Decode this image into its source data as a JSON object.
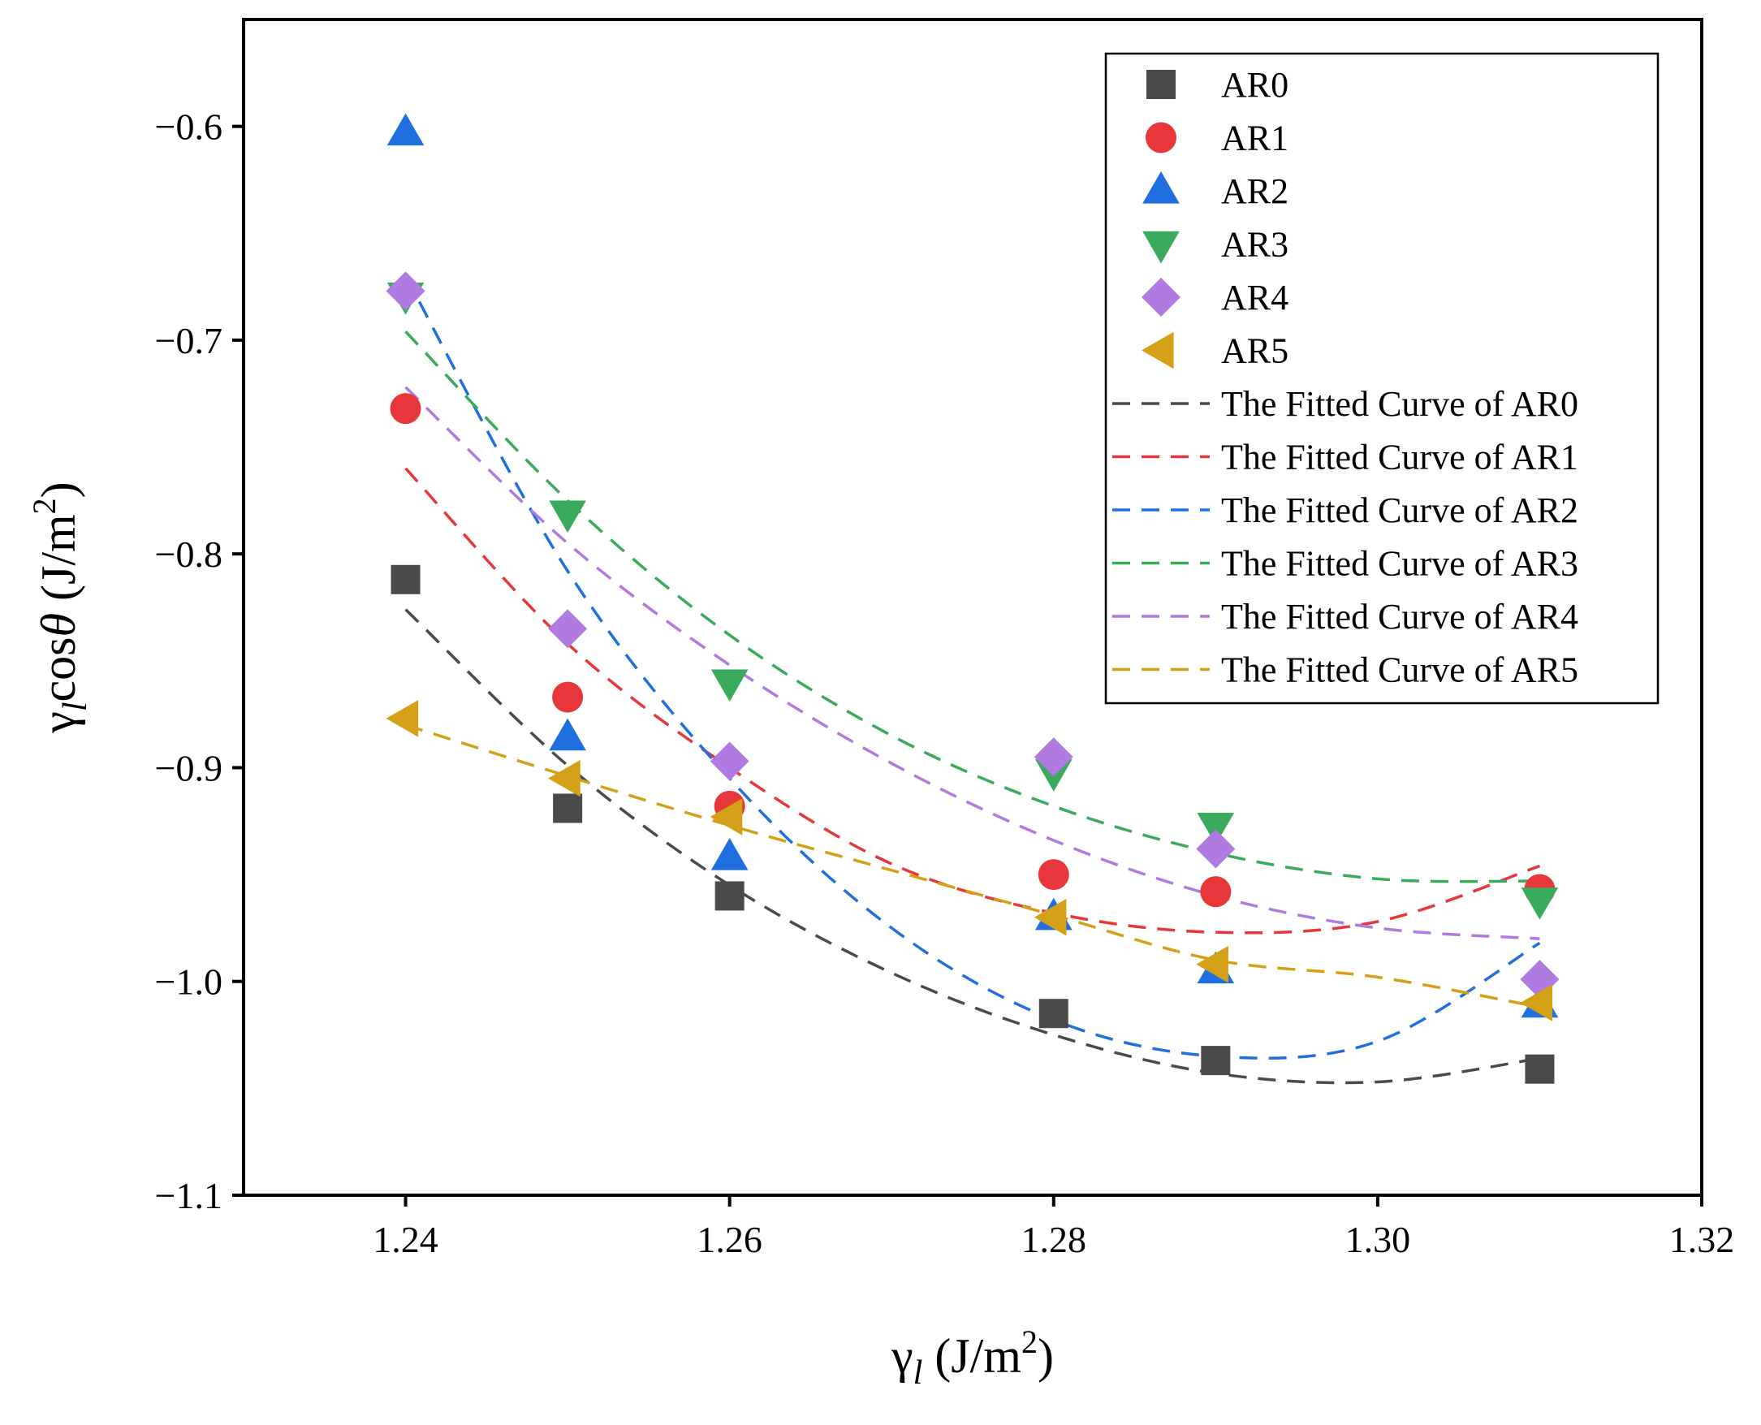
{
  "chart_data": {
    "type": "scatter",
    "title": "",
    "xlabel": "γl (J/m2)",
    "ylabel": "γlcosθ (J/m2)",
    "xlim": [
      1.23,
      1.32
    ],
    "ylim": [
      -1.1,
      -0.55
    ],
    "xticks": [
      1.24,
      1.26,
      1.28,
      1.3,
      1.32
    ],
    "xtick_labels": [
      "1.24",
      "1.26",
      "1.28",
      "1.30",
      "1.32"
    ],
    "yticks": [
      -0.6,
      -0.7,
      -0.8,
      -0.9,
      -1.0,
      -1.1
    ],
    "ytick_labels": [
      "−0.6",
      "−0.7",
      "−0.8",
      "−0.9",
      "−1.0",
      "−1.1"
    ],
    "grid": false,
    "legend_position": "top-right",
    "x": [
      1.24,
      1.25,
      1.26,
      1.28,
      1.29,
      1.31
    ],
    "series": [
      {
        "name": "AR0",
        "marker": "square",
        "color": "#4a4a4a",
        "values": [
          -0.812,
          -0.919,
          -0.96,
          -1.015,
          -1.037,
          -1.041
        ],
        "fit_label": "The Fitted Curve of AR0",
        "fit_x": [
          1.24,
          1.25,
          1.26,
          1.27,
          1.28,
          1.29,
          1.3,
          1.31
        ],
        "fit_y": [
          -0.826,
          -0.899,
          -0.955,
          -0.996,
          -1.025,
          -1.043,
          -1.047,
          -1.036
        ]
      },
      {
        "name": "AR1",
        "marker": "circle",
        "color": "#e8373a",
        "values": [
          -0.732,
          -0.867,
          -0.918,
          -0.95,
          -0.958,
          -0.957
        ],
        "fit_label": "The Fitted Curve of AR1",
        "fit_x": [
          1.24,
          1.25,
          1.26,
          1.27,
          1.28,
          1.29,
          1.3,
          1.31
        ],
        "fit_y": [
          -0.76,
          -0.842,
          -0.9,
          -0.945,
          -0.968,
          -0.977,
          -0.972,
          -0.946
        ]
      },
      {
        "name": "AR2",
        "marker": "triangle-up",
        "color": "#1f6fe0",
        "values": [
          -0.603,
          -0.886,
          -0.942,
          -0.97,
          -0.995,
          -1.011
        ],
        "fit_label": "The Fitted Curve of AR2",
        "fit_x": [
          1.24,
          1.25,
          1.26,
          1.27,
          1.28,
          1.29,
          1.3,
          1.31
        ],
        "fit_y": [
          -0.67,
          -0.808,
          -0.905,
          -0.975,
          -1.018,
          -1.035,
          -1.028,
          -0.982
        ]
      },
      {
        "name": "AR3",
        "marker": "triangle-down",
        "color": "#3aaa5c",
        "values": [
          -0.679,
          -0.781,
          -0.86,
          -0.902,
          -0.927,
          -0.962
        ],
        "fit_label": "The Fitted Curve of AR3",
        "fit_x": [
          1.24,
          1.25,
          1.26,
          1.27,
          1.28,
          1.29,
          1.3,
          1.31
        ],
        "fit_y": [
          -0.696,
          -0.775,
          -0.838,
          -0.885,
          -0.918,
          -0.94,
          -0.952,
          -0.953
        ]
      },
      {
        "name": "AR4",
        "marker": "diamond",
        "color": "#b07ae0",
        "values": [
          -0.677,
          -0.835,
          -0.897,
          -0.895,
          -0.938,
          -0.999
        ],
        "fit_label": "The Fitted Curve of AR4",
        "fit_x": [
          1.24,
          1.25,
          1.26,
          1.27,
          1.28,
          1.29,
          1.3,
          1.31
        ],
        "fit_y": [
          -0.722,
          -0.795,
          -0.852,
          -0.898,
          -0.934,
          -0.96,
          -0.975,
          -0.98
        ]
      },
      {
        "name": "AR5",
        "marker": "triangle-left",
        "color": "#d4a017",
        "values": [
          -0.877,
          -0.905,
          -0.923,
          -0.97,
          -0.992,
          -1.01
        ],
        "fit_label": "The Fitted Curve of AR5",
        "fit_x": [
          1.24,
          1.25,
          1.26,
          1.27,
          1.28,
          1.29,
          1.3,
          1.31
        ],
        "fit_y": [
          -0.88,
          -0.904,
          -0.927,
          -0.948,
          -0.969,
          -0.99,
          -0.998,
          -1.012
        ]
      }
    ]
  }
}
